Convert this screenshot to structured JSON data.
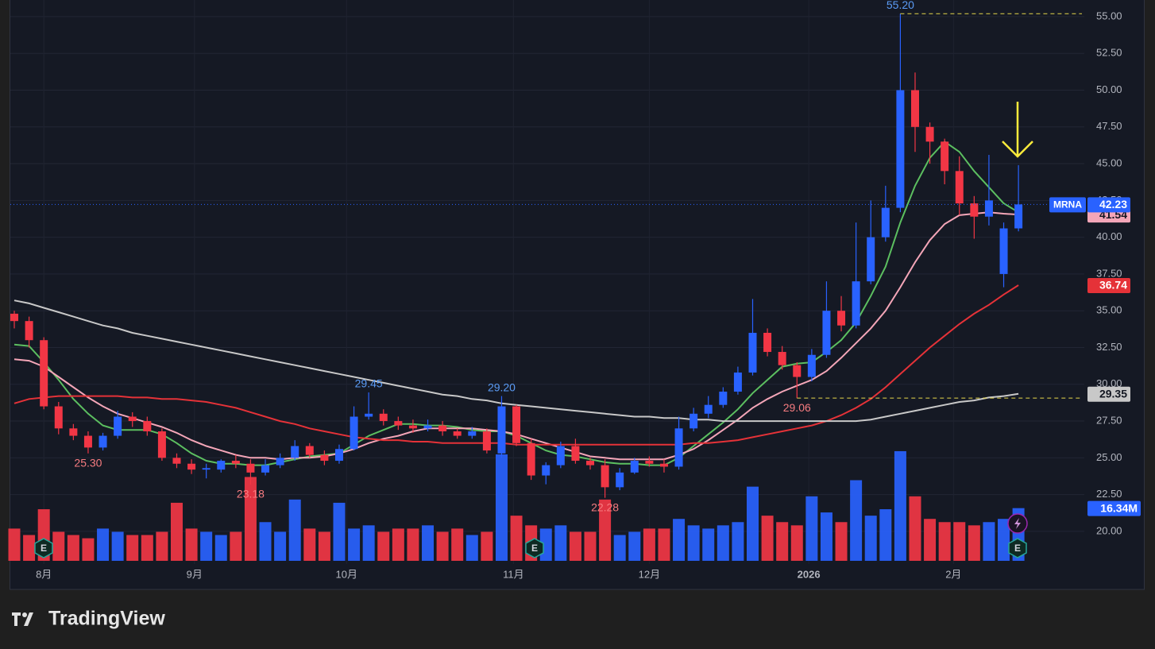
{
  "chart_data": {
    "type": "candlestick",
    "symbol": "MRNA",
    "up_color": "#2962ff",
    "down_color": "#f23645",
    "open": [
      34.8,
      34.3,
      33.0,
      28.5,
      27.0,
      26.5,
      25.7,
      26.5,
      27.8,
      27.5,
      26.8,
      25.0,
      24.6,
      24.2,
      24.2,
      24.8,
      24.6,
      24.0,
      24.5,
      25.0,
      25.8,
      25.2,
      24.8,
      25.6,
      27.8,
      28.0,
      27.5,
      27.2,
      27.0,
      27.2,
      26.8,
      26.5,
      26.8,
      25.3,
      28.5,
      26.0,
      23.8,
      24.5,
      25.8,
      24.8,
      24.5,
      23.0,
      24.0,
      24.8,
      24.6,
      24.4,
      27.0,
      28.0,
      28.6,
      29.5,
      30.8,
      33.5,
      32.2,
      31.3,
      30.5,
      32.0,
      35.0,
      34.0,
      37.0,
      40.0,
      42.0,
      50.0,
      47.5,
      46.5,
      44.5,
      42.3,
      41.4,
      37.5,
      40.6
    ],
    "high": [
      35.0,
      34.6,
      33.2,
      28.8,
      27.3,
      26.8,
      26.7,
      28.2,
      28.1,
      27.8,
      27.0,
      25.3,
      24.9,
      24.6,
      24.9,
      25.2,
      24.9,
      24.9,
      25.3,
      26.2,
      26.0,
      25.5,
      25.9,
      28.5,
      29.45,
      28.3,
      27.8,
      27.6,
      27.6,
      27.5,
      27.0,
      27.1,
      27.0,
      29.2,
      28.6,
      26.3,
      24.7,
      26.1,
      26.3,
      25.0,
      24.9,
      24.3,
      25.0,
      25.1,
      24.9,
      27.8,
      28.4,
      29.2,
      29.8,
      31.2,
      35.8,
      33.8,
      32.6,
      31.5,
      32.4,
      37.0,
      36.0,
      41.0,
      42.5,
      43.5,
      55.2,
      51.2,
      47.8,
      46.7,
      45.5,
      42.8,
      45.6,
      41.0,
      44.9
    ],
    "low": [
      33.8,
      32.5,
      28.3,
      26.6,
      26.2,
      25.3,
      25.5,
      26.3,
      27.1,
      26.5,
      24.8,
      24.3,
      23.9,
      23.6,
      24.0,
      24.3,
      23.18,
      23.8,
      24.3,
      24.8,
      25.0,
      24.5,
      24.6,
      25.5,
      27.6,
      27.2,
      26.9,
      26.7,
      26.8,
      26.5,
      26.3,
      26.3,
      25.3,
      25.0,
      25.8,
      23.5,
      23.2,
      24.3,
      24.6,
      24.2,
      22.28,
      22.8,
      23.9,
      24.4,
      24.0,
      24.2,
      26.8,
      27.7,
      28.4,
      29.3,
      30.6,
      31.9,
      31.0,
      29.06,
      30.2,
      31.8,
      33.6,
      33.8,
      36.8,
      39.7,
      41.7,
      45.8,
      45.0,
      43.6,
      41.5,
      39.9,
      40.8,
      36.6,
      40.4
    ],
    "close": [
      34.3,
      33.0,
      28.5,
      27.0,
      26.5,
      25.7,
      26.5,
      27.8,
      27.5,
      26.8,
      25.0,
      24.6,
      24.2,
      24.3,
      24.8,
      24.6,
      24.0,
      24.5,
      25.0,
      25.8,
      25.2,
      24.8,
      25.6,
      27.8,
      28.0,
      27.5,
      27.2,
      27.0,
      27.2,
      26.8,
      26.5,
      26.8,
      25.5,
      28.5,
      26.0,
      23.8,
      24.5,
      25.8,
      24.8,
      24.5,
      23.0,
      24.0,
      24.8,
      24.6,
      24.4,
      27.0,
      28.0,
      28.6,
      29.5,
      30.8,
      33.5,
      32.2,
      31.3,
      30.5,
      32.0,
      35.0,
      34.0,
      37.0,
      40.0,
      42.0,
      50.0,
      47.5,
      46.5,
      44.5,
      42.3,
      41.4,
      42.5,
      40.6,
      42.23
    ],
    "volume": {
      "values": [
        10,
        8,
        16,
        9,
        8,
        7,
        10,
        9,
        8,
        8,
        9,
        18,
        10,
        9,
        8,
        9,
        26,
        12,
        9,
        19,
        10,
        9,
        18,
        10,
        11,
        9,
        10,
        10,
        11,
        9,
        10,
        8,
        9,
        33,
        14,
        11,
        10,
        11,
        9,
        9,
        19,
        8,
        9,
        10,
        10,
        13,
        11,
        10,
        11,
        12,
        23,
        14,
        12,
        11,
        20,
        15,
        12,
        25,
        14,
        16,
        34,
        20,
        13,
        12,
        12,
        11,
        12,
        13,
        16.34
      ],
      "last_label": "16.34M"
    },
    "series": [
      {
        "color": "#5cbf60",
        "values": [
          32.7,
          32.6,
          31.5,
          30.3,
          29.0,
          28.0,
          27.2,
          26.9,
          26.9,
          26.9,
          26.6,
          26.0,
          25.3,
          24.8,
          24.6,
          24.6,
          24.5,
          24.5,
          24.7,
          24.9,
          25.1,
          25.2,
          25.3,
          25.9,
          26.5,
          26.9,
          27.3,
          27.3,
          27.2,
          27.2,
          27.1,
          26.9,
          26.8,
          26.8,
          26.5,
          26.0,
          25.5,
          25.2,
          25.1,
          24.9,
          24.7,
          24.6,
          24.6,
          24.5,
          24.5,
          25.0,
          25.8,
          26.6,
          27.4,
          28.3,
          29.4,
          30.3,
          31.2,
          31.4,
          31.5,
          32.2,
          33.0,
          34.2,
          36.0,
          38.0,
          41.0,
          43.5,
          45.4,
          46.5,
          45.8,
          44.5,
          43.4,
          42.3,
          41.7
        ]
      },
      {
        "color": "#f4a6b8",
        "values": [
          31.7,
          31.6,
          31.2,
          30.5,
          29.8,
          29.1,
          28.5,
          28.0,
          27.7,
          27.4,
          27.1,
          26.7,
          26.2,
          25.8,
          25.5,
          25.2,
          25.0,
          25.0,
          24.9,
          25.0,
          25.0,
          25.1,
          25.3,
          25.6,
          26.0,
          26.3,
          26.5,
          26.8,
          27.0,
          27.0,
          27.0,
          27.0,
          26.9,
          26.8,
          26.6,
          26.3,
          26.0,
          25.7,
          25.4,
          25.1,
          25.0,
          24.9,
          24.9,
          24.9,
          24.9,
          25.2,
          25.6,
          26.2,
          26.9,
          27.6,
          28.4,
          29.0,
          29.5,
          29.9,
          30.3,
          30.9,
          31.8,
          32.8,
          33.8,
          35.0,
          36.6,
          38.3,
          39.8,
          40.9,
          41.5,
          41.6,
          41.7,
          41.6,
          41.54
        ],
        "badge": true
      },
      {
        "color": "#e53238",
        "values": [
          28.7,
          29.0,
          29.1,
          29.2,
          29.2,
          29.2,
          29.2,
          29.2,
          29.1,
          29.1,
          29.0,
          29.0,
          28.9,
          28.8,
          28.6,
          28.4,
          28.1,
          27.8,
          27.5,
          27.3,
          27.0,
          26.8,
          26.6,
          26.4,
          26.3,
          26.2,
          26.2,
          26.1,
          26.1,
          26.0,
          26.0,
          26.0,
          26.0,
          26.0,
          25.9,
          25.9,
          25.9,
          25.9,
          25.9,
          25.9,
          25.9,
          25.9,
          25.9,
          25.9,
          25.9,
          25.9,
          26.0,
          26.0,
          26.1,
          26.2,
          26.4,
          26.6,
          26.8,
          27.0,
          27.2,
          27.5,
          27.9,
          28.4,
          29.0,
          29.8,
          30.7,
          31.6,
          32.5,
          33.3,
          34.1,
          34.8,
          35.4,
          36.1,
          36.74
        ],
        "badge": true
      },
      {
        "color": "#c8c8c8",
        "values": [
          35.7,
          35.5,
          35.2,
          34.9,
          34.6,
          34.3,
          34.0,
          33.8,
          33.5,
          33.3,
          33.1,
          32.9,
          32.7,
          32.5,
          32.3,
          32.1,
          31.9,
          31.7,
          31.5,
          31.3,
          31.1,
          30.9,
          30.7,
          30.5,
          30.3,
          30.1,
          29.9,
          29.7,
          29.5,
          29.3,
          29.2,
          29.0,
          28.9,
          28.7,
          28.6,
          28.5,
          28.4,
          28.3,
          28.2,
          28.1,
          28.0,
          27.9,
          27.8,
          27.8,
          27.7,
          27.7,
          27.6,
          27.6,
          27.5,
          27.5,
          27.5,
          27.5,
          27.5,
          27.5,
          27.5,
          27.5,
          27.5,
          27.5,
          27.6,
          27.8,
          28.0,
          28.2,
          28.4,
          28.6,
          28.8,
          28.9,
          29.1,
          29.2,
          29.35
        ],
        "badge": true
      }
    ],
    "annotations": [
      {
        "label": "55.20",
        "candle": 60,
        "at": "high",
        "guide": true
      },
      {
        "label": "29.45",
        "candle": 24,
        "at": "high"
      },
      {
        "label": "29.20",
        "candle": 33,
        "at": "high"
      },
      {
        "label": "25.30",
        "candle": 5,
        "at": "low"
      },
      {
        "label": "23.18",
        "candle": 16,
        "at": "low"
      },
      {
        "label": "22.28",
        "candle": 40,
        "at": "low"
      },
      {
        "label": "29.06",
        "candle": 53,
        "at": "low",
        "guide": true
      }
    ],
    "ylim": [
      16.16,
      56.13
    ],
    "yticks": [
      {
        "value": 20,
        "label": "20.00"
      },
      {
        "value": 22.5,
        "label": "22.50"
      },
      {
        "value": 25,
        "label": "25.00"
      },
      {
        "value": 27.5,
        "label": "27.50"
      },
      {
        "value": 30,
        "label": "30.00"
      },
      {
        "value": 32.5,
        "label": "32.50"
      },
      {
        "value": 35,
        "label": "35.00"
      },
      {
        "value": 37.5,
        "label": "37.50"
      },
      {
        "value": 40,
        "label": "40.00"
      },
      {
        "value": 42.5,
        "label": "42.50"
      },
      {
        "value": 45,
        "label": "45.00"
      },
      {
        "value": 47.5,
        "label": "47.50"
      },
      {
        "value": 50,
        "label": "50.00"
      },
      {
        "value": 52.5,
        "label": "52.50"
      },
      {
        "value": 55,
        "label": "55.00"
      }
    ],
    "xticks": [
      {
        "value": 2,
        "label": "8月"
      },
      {
        "value": 12.2,
        "label": "9月"
      },
      {
        "value": 22.5,
        "label": "10月"
      },
      {
        "value": 33.8,
        "label": "11月"
      },
      {
        "value": 43,
        "label": "12月"
      },
      {
        "value": 53.8,
        "label": "2026"
      },
      {
        "value": 63.6,
        "label": "2月"
      }
    ],
    "grid": true
  },
  "footer": {
    "brand": "TradingView"
  }
}
